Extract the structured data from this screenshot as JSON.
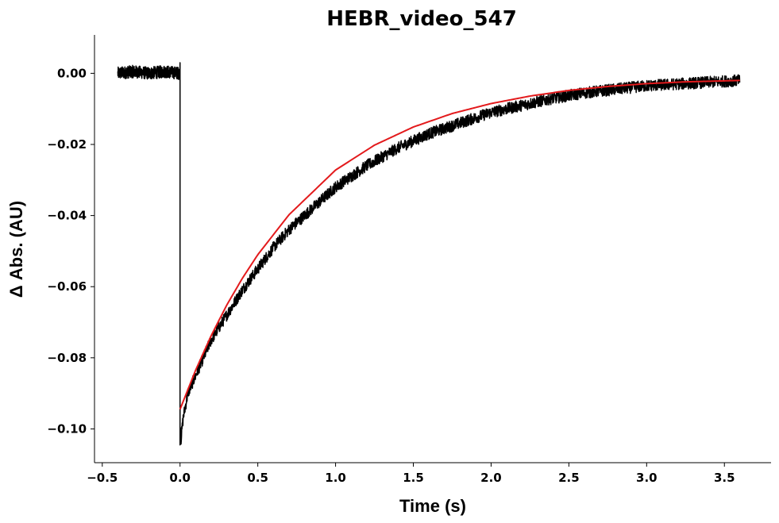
{
  "chart_data": {
    "type": "line",
    "title": "HEBR_video_547",
    "xlabel": "Time (s)",
    "ylabel": "Δ Abs. (AU)",
    "xlim": [
      -0.55,
      3.8
    ],
    "ylim": [
      -0.1095,
      0.0108
    ],
    "xticks": [
      -0.5,
      0.0,
      0.5,
      1.0,
      1.5,
      2.0,
      2.5,
      3.0,
      3.5
    ],
    "xtick_labels": [
      "−0.5",
      "0.0",
      "0.5",
      "1.0",
      "1.5",
      "2.0",
      "2.5",
      "3.0",
      "3.5"
    ],
    "yticks": [
      0.0,
      -0.02,
      -0.04,
      -0.06,
      -0.08,
      -0.1
    ],
    "ytick_labels": [
      "0.00",
      "−0.02",
      "−0.04",
      "−0.06",
      "−0.08",
      "−0.10"
    ],
    "grid": false,
    "legend": "none",
    "series": [
      {
        "role": "measured-trace",
        "color": "#000000",
        "x": [
          -0.4,
          -0.3,
          -0.2,
          -0.1,
          -0.001,
          0.0,
          0.005,
          0.02,
          0.05,
          0.1,
          0.2,
          0.3,
          0.4,
          0.5,
          0.6,
          0.7,
          0.8,
          1.0,
          1.2,
          1.4,
          1.6,
          1.8,
          2.0,
          2.2,
          2.4,
          2.6,
          2.8,
          3.0,
          3.2,
          3.4,
          3.6
        ],
        "y": [
          0.0,
          0.0005,
          0.0,
          0.0005,
          0.0,
          -0.0945,
          -0.1035,
          -0.097,
          -0.09,
          -0.085,
          -0.075,
          -0.068,
          -0.061,
          -0.055,
          -0.049,
          -0.044,
          -0.04,
          -0.032,
          -0.026,
          -0.021,
          -0.017,
          -0.014,
          -0.011,
          -0.009,
          -0.007,
          -0.0055,
          -0.0045,
          -0.0035,
          -0.003,
          -0.0025,
          -0.002
        ],
        "noise_amplitude": 0.0022
      },
      {
        "role": "fit-curve",
        "color": "#e31a1c",
        "x": [
          0.0,
          0.1,
          0.2,
          0.3,
          0.4,
          0.5,
          0.7,
          1.0,
          1.25,
          1.5,
          1.75,
          2.0,
          2.25,
          2.5,
          2.75,
          3.0,
          3.25,
          3.6
        ],
        "y": [
          -0.0945,
          -0.0835,
          -0.0738,
          -0.0652,
          -0.0577,
          -0.051,
          -0.0398,
          -0.0272,
          -0.0202,
          -0.0151,
          -0.0113,
          -0.0085,
          -0.0064,
          -0.0048,
          -0.0037,
          -0.0029,
          -0.0024,
          -0.002
        ]
      }
    ]
  }
}
